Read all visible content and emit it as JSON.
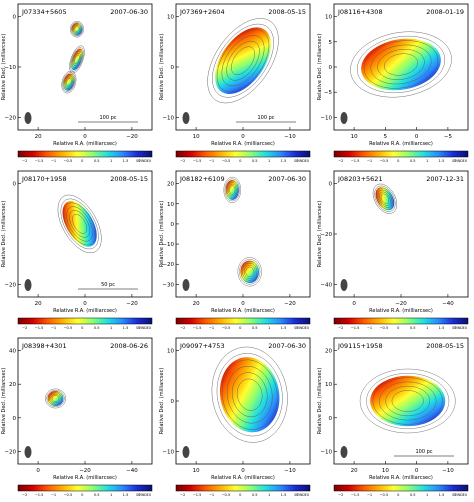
{
  "figure": {
    "ylabel": "Relative Decl. (milliarcsec)",
    "xlabel": "Relative R.A. (milliarcsec)",
    "colorbar_unit": "SP INDEX",
    "colors": {
      "frame": "#000000",
      "contour": "#555555",
      "spectral_scale": [
        "#7a0000",
        "#d40000",
        "#ff5a00",
        "#ffb000",
        "#ffff30",
        "#8cff70",
        "#20e0e0",
        "#2a8cff",
        "#1b2bd6",
        "#08106e"
      ]
    },
    "panels": [
      {
        "source": "J07334+5605",
        "date": "2007-06-30",
        "x_ticks": [
          "20",
          "0",
          "−20"
        ],
        "y_ticks": [
          "0",
          "−10",
          "−20"
        ],
        "scale_label": "100 pc",
        "colorbar_ticks": [
          "−2",
          "−1.5",
          "−1",
          "−0.5",
          "0",
          "0.5",
          "1",
          "1.5",
          "2"
        ],
        "chart_data": {
          "type": "heatmap",
          "title": "J07334+5605 2007-06-30",
          "xlabel": "Relative R.A. (milliarcsec)",
          "ylabel": "Relative Decl. (milliarcsec)",
          "x_ticks": [
            20,
            0,
            -20
          ],
          "y_ticks": [
            0,
            -10,
            -20
          ],
          "colorbar_range": [
            -2,
            2
          ]
        }
      },
      {
        "source": "J07369+2604",
        "date": "2008-05-15",
        "x_ticks": [
          "10",
          "0",
          "−10"
        ],
        "y_ticks": [
          "10",
          "0",
          "−10"
        ],
        "scale_label": "100 pc",
        "colorbar_ticks": [
          "−2",
          "−1.5",
          "−1",
          "−0.5",
          "0",
          "0.5",
          "1",
          "1.5",
          "2"
        ],
        "chart_data": {
          "type": "heatmap",
          "title": "J07369+2604 2008-05-15",
          "xlabel": "Relative R.A. (milliarcsec)",
          "ylabel": "Relative Decl. (milliarcsec)",
          "x_ticks": [
            10,
            0,
            -10
          ],
          "y_ticks": [
            10,
            0,
            -10
          ],
          "colorbar_range": [
            -2,
            2
          ]
        }
      },
      {
        "source": "J08116+4308",
        "date": "2008-01-19",
        "x_ticks": [
          "10",
          "5",
          "0",
          "−5"
        ],
        "y_ticks": [
          "10",
          "5",
          "0",
          "−5",
          "−10"
        ],
        "scale_label": "",
        "colorbar_ticks": [
          "−2",
          "−1.5",
          "−1",
          "−0.5",
          "0",
          "0.5",
          "1",
          "1.5",
          "2"
        ],
        "chart_data": {
          "type": "heatmap",
          "title": "J08116+4308 2008-01-19",
          "xlabel": "Relative R.A. (milliarcsec)",
          "ylabel": "Relative Decl. (milliarcsec)",
          "x_ticks": [
            10,
            5,
            0,
            -5
          ],
          "y_ticks": [
            10,
            5,
            0,
            -5,
            -10
          ],
          "colorbar_range": [
            -2,
            2
          ]
        }
      },
      {
        "source": "J08170+1958",
        "date": "2008-05-15",
        "x_ticks": [
          "20",
          "0",
          "−20"
        ],
        "y_ticks": [
          "0",
          "−20"
        ],
        "scale_label": "50 pc",
        "colorbar_ticks": [
          "−2",
          "−1.5",
          "−1",
          "−0.5",
          "0",
          "0.5",
          "1",
          "1.5",
          "2"
        ],
        "chart_data": {
          "type": "heatmap",
          "title": "J08170+1958 2008-05-15",
          "xlabel": "Relative R.A. (milliarcsec)",
          "ylabel": "Relative Decl. (milliarcsec)",
          "x_ticks": [
            20,
            0,
            -20
          ],
          "y_ticks": [
            0,
            -20
          ],
          "colorbar_range": [
            -2,
            2
          ]
        }
      },
      {
        "source": "J08182+6109",
        "date": "2007-06-30",
        "x_ticks": [
          "20",
          "0",
          "−20"
        ],
        "y_ticks": [
          "20",
          "10",
          "0",
          "−10",
          "−20",
          "−30"
        ],
        "scale_label": "",
        "colorbar_ticks": [
          "−2",
          "−1.5",
          "−1",
          "−0.5",
          "0",
          "0.5",
          "1",
          "1.5",
          "2"
        ],
        "chart_data": {
          "type": "heatmap",
          "title": "J08182+6109 2007-06-30",
          "xlabel": "Relative R.A. (milliarcsec)",
          "ylabel": "Relative Decl. (milliarcsec)",
          "x_ticks": [
            20,
            0,
            -20
          ],
          "y_ticks": [
            20,
            10,
            0,
            -10,
            -20,
            -30
          ],
          "colorbar_range": [
            -2,
            2
          ]
        }
      },
      {
        "source": "J08203+5621",
        "date": "2007-12-31",
        "x_ticks": [
          "0",
          "−20",
          "−40"
        ],
        "y_ticks": [
          "0",
          "−20",
          "−40"
        ],
        "scale_label": "",
        "colorbar_ticks": [
          "−2",
          "−1.5",
          "−1",
          "−0.5",
          "0",
          "0.5",
          "1",
          "1.5",
          "2"
        ],
        "chart_data": {
          "type": "heatmap",
          "title": "J08203+5621 2007-12-31",
          "xlabel": "Relative R.A. (milliarcsec)",
          "ylabel": "Relative Decl. (milliarcsec)",
          "x_ticks": [
            0,
            -20,
            -40
          ],
          "y_ticks": [
            0,
            -20,
            -40
          ],
          "colorbar_range": [
            -2,
            2
          ]
        }
      },
      {
        "source": "J08398+4301",
        "date": "2008-06-26",
        "x_ticks": [
          "0",
          "−20",
          "−40"
        ],
        "y_ticks": [
          "40",
          "20",
          "0",
          "−20"
        ],
        "scale_label": "",
        "colorbar_ticks": [
          "−2",
          "−1.5",
          "−1",
          "−0.5",
          "0",
          "0.5",
          "1",
          "1.5",
          "2"
        ],
        "chart_data": {
          "type": "heatmap",
          "title": "J08398+4301 2008-06-26",
          "xlabel": "Relative R.A. (milliarcsec)",
          "ylabel": "Relative Decl. (milliarcsec)",
          "x_ticks": [
            0,
            -20,
            -40
          ],
          "y_ticks": [
            40,
            20,
            0,
            -20
          ],
          "colorbar_range": [
            -2,
            2
          ]
        }
      },
      {
        "source": "J09097+4753",
        "date": "2007-06-30",
        "x_ticks": [
          "10",
          "0",
          "−10"
        ],
        "y_ticks": [
          "10",
          "0",
          "−10"
        ],
        "scale_label": "",
        "colorbar_ticks": [
          "−2",
          "−1.5",
          "−1",
          "−0.5",
          "0",
          "0.5",
          "1",
          "1.5",
          "2"
        ],
        "chart_data": {
          "type": "heatmap",
          "title": "J09097+4753 2007-06-30",
          "xlabel": "Relative R.A. (milliarcsec)",
          "ylabel": "Relative Decl. (milliarcsec)",
          "x_ticks": [
            10,
            0,
            -10
          ],
          "y_ticks": [
            10,
            0,
            -10
          ],
          "colorbar_range": [
            -2,
            2
          ]
        }
      },
      {
        "source": "J09115+1958",
        "date": "2008-05-15",
        "x_ticks": [
          "20",
          "10",
          "0",
          "−10"
        ],
        "y_ticks": [
          "20",
          "10",
          "0",
          "−10"
        ],
        "scale_label": "100 pc",
        "colorbar_ticks": [
          "−2",
          "−1.5",
          "−1",
          "−0.5",
          "0",
          "0.5",
          "1",
          "1.5",
          "2"
        ],
        "chart_data": {
          "type": "heatmap",
          "title": "J09115+1958 2008-05-15",
          "xlabel": "Relative R.A. (milliarcsec)",
          "ylabel": "Relative Decl. (milliarcsec)",
          "x_ticks": [
            20,
            10,
            0,
            -10
          ],
          "y_ticks": [
            20,
            10,
            0,
            -10
          ],
          "colorbar_range": [
            -2,
            2
          ]
        }
      }
    ]
  }
}
